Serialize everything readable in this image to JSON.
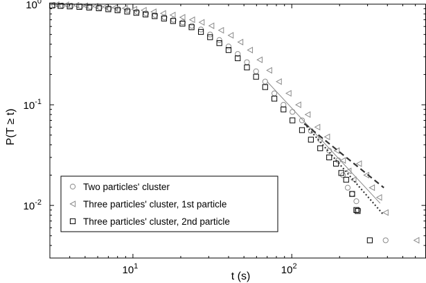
{
  "chart_data": {
    "type": "scatter",
    "x_scale": "log",
    "y_scale": "log",
    "xlabel": "t (s)",
    "ylabel": "P(T ≥ t)",
    "xlim": [
      3,
      700
    ],
    "ylim": [
      0.003,
      1
    ],
    "x_ticks": [
      10,
      100
    ],
    "y_ticks": [
      0.01,
      0.1,
      1
    ],
    "grid": false,
    "legend_position": "bottom-left",
    "series": [
      {
        "name": "Two particles' cluster",
        "marker": "circle",
        "color": "#8a8a8a",
        "points": [
          [
            3.2,
            0.98
          ],
          [
            3.6,
            0.97
          ],
          [
            4.1,
            0.965
          ],
          [
            4.7,
            0.955
          ],
          [
            5.4,
            0.945
          ],
          [
            6.2,
            0.93
          ],
          [
            7.1,
            0.91
          ],
          [
            8.1,
            0.89
          ],
          [
            9.3,
            0.87
          ],
          [
            10.6,
            0.84
          ],
          [
            12.1,
            0.81
          ],
          [
            13.8,
            0.78
          ],
          [
            15.8,
            0.74
          ],
          [
            18.0,
            0.7
          ],
          [
            20.6,
            0.66
          ],
          [
            23.5,
            0.61
          ],
          [
            26.8,
            0.56
          ],
          [
            30.6,
            0.5
          ],
          [
            35.0,
            0.44
          ],
          [
            40.0,
            0.38
          ],
          [
            45.7,
            0.32
          ],
          [
            52.2,
            0.265
          ],
          [
            59.6,
            0.215
          ],
          [
            68.0,
            0.17
          ],
          [
            77.7,
            0.13
          ],
          [
            88.7,
            0.1
          ],
          [
            101,
            0.085
          ],
          [
            116,
            0.07
          ],
          [
            132,
            0.055
          ],
          [
            151,
            0.045
          ],
          [
            172,
            0.035
          ],
          [
            196,
            0.028
          ],
          [
            210,
            0.02
          ],
          [
            225,
            0.015
          ],
          [
            240,
            0.013
          ],
          [
            255,
            0.011
          ],
          [
            262,
            0.009
          ],
          [
            390,
            0.0045
          ]
        ]
      },
      {
        "name": "Three particles' cluster, 1st particle",
        "marker": "triangle-left",
        "color": "#8a8a8a",
        "points": [
          [
            3.3,
            0.99
          ],
          [
            3.8,
            0.985
          ],
          [
            4.4,
            0.975
          ],
          [
            5.0,
            0.965
          ],
          [
            5.8,
            0.955
          ],
          [
            6.7,
            0.94
          ],
          [
            7.7,
            0.925
          ],
          [
            8.9,
            0.91
          ],
          [
            10.2,
            0.89
          ],
          [
            11.7,
            0.87
          ],
          [
            13.5,
            0.84
          ],
          [
            15.5,
            0.81
          ],
          [
            17.8,
            0.78
          ],
          [
            20.5,
            0.74
          ],
          [
            23.6,
            0.7
          ],
          [
            27.1,
            0.66
          ],
          [
            31.2,
            0.61
          ],
          [
            35.9,
            0.55
          ],
          [
            41.3,
            0.49
          ],
          [
            47.5,
            0.42
          ],
          [
            54.6,
            0.35
          ],
          [
            62.8,
            0.28
          ],
          [
            72.2,
            0.22
          ],
          [
            83.0,
            0.17
          ],
          [
            95.5,
            0.13
          ],
          [
            110,
            0.1
          ],
          [
            126,
            0.08
          ],
          [
            145,
            0.06
          ],
          [
            167,
            0.048
          ],
          [
            192,
            0.035
          ],
          [
            210,
            0.028
          ],
          [
            228,
            0.022
          ],
          [
            245,
            0.018
          ],
          [
            265,
            0.026
          ],
          [
            295,
            0.02
          ],
          [
            320,
            0.015
          ],
          [
            355,
            0.012
          ],
          [
            390,
            0.0085
          ],
          [
            610,
            0.0045
          ]
        ]
      },
      {
        "name": "Three particles' cluster, 2nd particle",
        "marker": "square",
        "color": "#000000",
        "points": [
          [
            3.1,
            0.97
          ],
          [
            3.5,
            0.96
          ],
          [
            4.0,
            0.95
          ],
          [
            4.6,
            0.94
          ],
          [
            5.3,
            0.925
          ],
          [
            6.1,
            0.91
          ],
          [
            7.0,
            0.89
          ],
          [
            8.0,
            0.87
          ],
          [
            9.2,
            0.845
          ],
          [
            10.5,
            0.82
          ],
          [
            12.0,
            0.79
          ],
          [
            13.7,
            0.76
          ],
          [
            15.7,
            0.72
          ],
          [
            17.9,
            0.68
          ],
          [
            20.5,
            0.64
          ],
          [
            23.4,
            0.59
          ],
          [
            26.8,
            0.53
          ],
          [
            30.6,
            0.47
          ],
          [
            35.0,
            0.41
          ],
          [
            40.0,
            0.35
          ],
          [
            45.7,
            0.29
          ],
          [
            52.2,
            0.235
          ],
          [
            59.6,
            0.19
          ],
          [
            68.0,
            0.15
          ],
          [
            77.7,
            0.115
          ],
          [
            88.7,
            0.09
          ],
          [
            101,
            0.07
          ],
          [
            116,
            0.056
          ],
          [
            132,
            0.045
          ],
          [
            151,
            0.037
          ],
          [
            172,
            0.03
          ],
          [
            190,
            0.026
          ],
          [
            205,
            0.021
          ],
          [
            220,
            0.018
          ],
          [
            240,
            0.013
          ],
          [
            255,
            0.009
          ],
          [
            260,
            0.0088
          ],
          [
            310,
            0.0045
          ]
        ]
      }
    ],
    "fit_lines": [
      {
        "style": "solid",
        "color": "#8a8a8a",
        "points": [
          [
            70,
            0.17
          ],
          [
            360,
            0.0105
          ]
        ]
      },
      {
        "style": "dashed",
        "color": "#333333",
        "points": [
          [
            120,
            0.065
          ],
          [
            380,
            0.015
          ]
        ]
      },
      {
        "style": "dotted",
        "color": "#333333",
        "points": [
          [
            120,
            0.065
          ],
          [
            380,
            0.008
          ]
        ]
      }
    ]
  }
}
